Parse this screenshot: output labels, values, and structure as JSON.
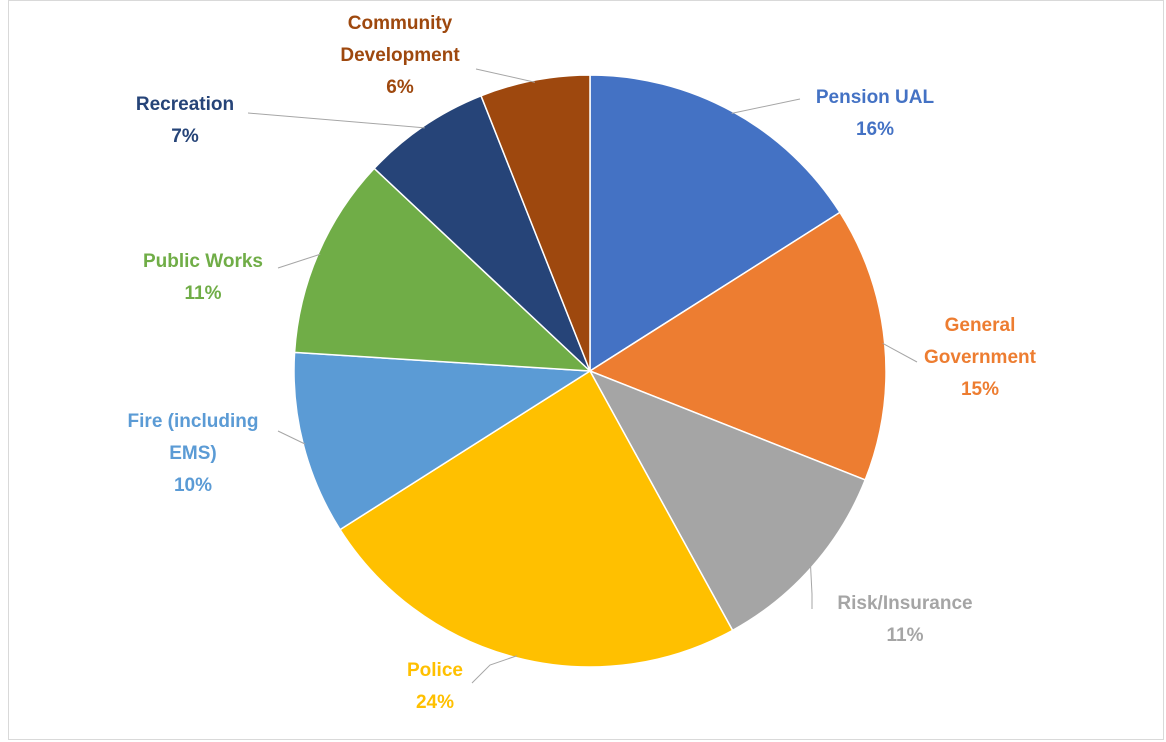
{
  "chart_data": {
    "type": "pie",
    "start_angle_deg": 0,
    "direction": "clockwise",
    "slices": [
      {
        "name": "Pension UAL",
        "label_lines": [
          "Pension UAL"
        ],
        "value": 16,
        "value_label": "16%",
        "color": "#4472C4"
      },
      {
        "name": "General Government",
        "label_lines": [
          "General",
          "Government"
        ],
        "value": 15,
        "value_label": "15%",
        "color": "#ED7D31"
      },
      {
        "name": "Risk/Insurance",
        "label_lines": [
          "Risk/Insurance"
        ],
        "value": 11,
        "value_label": "11%",
        "color": "#A5A5A5"
      },
      {
        "name": "Police",
        "label_lines": [
          "Police"
        ],
        "value": 24,
        "value_label": "24%",
        "color": "#FFC000"
      },
      {
        "name": "Fire (including EMS)",
        "label_lines": [
          "Fire (including",
          "EMS)"
        ],
        "value": 10,
        "value_label": "10%",
        "color": "#5B9BD5"
      },
      {
        "name": "Public Works",
        "label_lines": [
          "Public Works"
        ],
        "value": 11,
        "value_label": "11%",
        "color": "#70AD47"
      },
      {
        "name": "Recreation",
        "label_lines": [
          "Recreation"
        ],
        "value": 7,
        "value_label": "7%",
        "color": "#264478"
      },
      {
        "name": "Community Development",
        "label_lines": [
          "Community",
          "Development"
        ],
        "value": 6,
        "value_label": "6%",
        "color": "#9E480E"
      }
    ]
  }
}
